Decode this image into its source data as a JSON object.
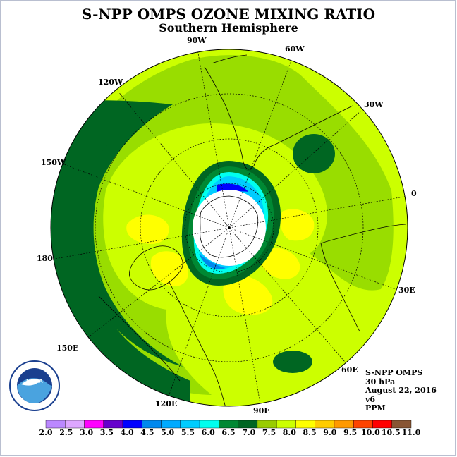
{
  "title": "S-NPP OMPS OZONE MIXING RATIO",
  "subtitle": "Southern Hemisphere",
  "longitude_labels": [
    "90W",
    "60W",
    "30W",
    "0",
    "30E",
    "60E",
    "90E",
    "120E",
    "150E",
    "180",
    "150W",
    "120W"
  ],
  "info": {
    "instrument": "S-NPP OMPS",
    "pressure": "30 hPa",
    "date": "August 22, 2016",
    "version": "v6",
    "units": "PPM"
  },
  "logo_text": "NOAA",
  "colorbar": {
    "labels": [
      "2.0",
      "2.5",
      "3.0",
      "3.5",
      "4.0",
      "4.5",
      "5.0",
      "5.5",
      "6.0",
      "6.5",
      "7.0",
      "7.5",
      "8.0",
      "8.5",
      "9.0",
      "9.5",
      "10.0",
      "10.5",
      "11.0"
    ],
    "colors": [
      "#bb88ff",
      "#dda6ff",
      "#ff00ff",
      "#6600cc",
      "#0000ff",
      "#0088ee",
      "#00aaff",
      "#00ccff",
      "#00ffee",
      "#008833",
      "#006622",
      "#99cc00",
      "#ccff00",
      "#ffff00",
      "#ffcc00",
      "#ff9900",
      "#ff4400",
      "#ff0000",
      "#885533"
    ]
  }
}
